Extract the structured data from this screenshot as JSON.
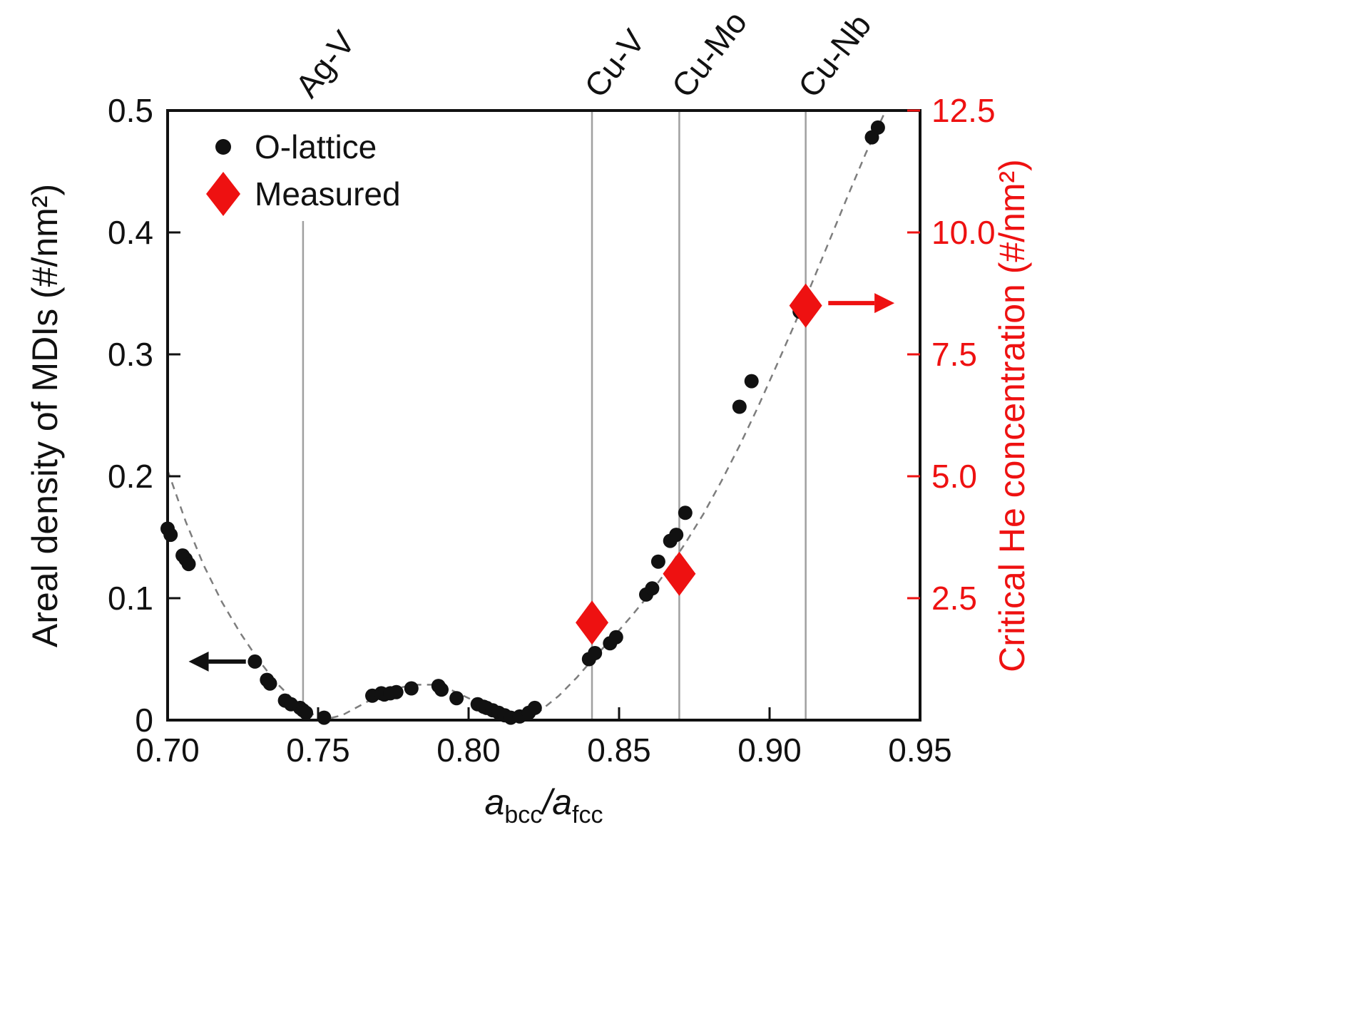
{
  "chart_data": {
    "type": "scatter",
    "title": "",
    "xlabel": "a_bcc/a_fcc",
    "xlabel_parts": [
      {
        "text": "a",
        "italic": true
      },
      {
        "text": "bcc",
        "sub": true
      },
      {
        "text": "/",
        "italic": true
      },
      {
        "text": "a",
        "italic": true
      },
      {
        "text": "fcc",
        "sub": true
      }
    ],
    "ylabel_left": "Areal density of MDIs (#/nm²)",
    "ylabel_right": "Critical He concentration (#/nm²)",
    "xlim": [
      0.7,
      0.95
    ],
    "ylim_left": [
      0,
      0.5
    ],
    "ylim_right": [
      0,
      12.5
    ],
    "x_ticks": [
      "0.70",
      "0.75",
      "0.80",
      "0.85",
      "0.90",
      "0.95"
    ],
    "y_ticks_left": [
      "0",
      "0.1",
      "0.2",
      "0.3",
      "0.4",
      "0.5"
    ],
    "y_ticks_right": [
      "2.5",
      "5.0",
      "7.5",
      "10.0",
      "12.5"
    ],
    "grid": false,
    "legend_position": "upper-left-inside",
    "colors": {
      "accent_red": "#ee1111",
      "dot_black": "#111111",
      "grid_gray": "#a0a0a0",
      "curve_gray": "#7d7d7d",
      "axis_black": "#111111"
    },
    "vlines": [
      {
        "label": "Ag-V",
        "x": 0.745,
        "top_gap": 155
      },
      {
        "label": "Cu-V",
        "x": 0.841,
        "top_gap": 0
      },
      {
        "label": "Cu-Mo",
        "x": 0.87,
        "top_gap": 0
      },
      {
        "label": "Cu-Nb",
        "x": 0.912,
        "top_gap": 0
      }
    ],
    "legend": [
      {
        "label": "O-lattice",
        "marker": "dot",
        "color": "#111111"
      },
      {
        "label": "Measured",
        "marker": "diamond",
        "color": "#ee1111"
      }
    ],
    "series": [
      {
        "name": "O-lattice",
        "marker": "dot",
        "color": "#111111",
        "axis": "left",
        "points": [
          [
            0.7,
            0.157
          ],
          [
            0.701,
            0.152
          ],
          [
            0.705,
            0.135
          ],
          [
            0.706,
            0.132
          ],
          [
            0.707,
            0.128
          ],
          [
            0.729,
            0.048
          ],
          [
            0.733,
            0.033
          ],
          [
            0.734,
            0.03
          ],
          [
            0.739,
            0.016
          ],
          [
            0.741,
            0.013
          ],
          [
            0.744,
            0.01
          ],
          [
            0.745,
            0.008
          ],
          [
            0.746,
            0.006
          ],
          [
            0.752,
            0.002
          ],
          [
            0.768,
            0.02
          ],
          [
            0.771,
            0.022
          ],
          [
            0.772,
            0.021
          ],
          [
            0.774,
            0.022
          ],
          [
            0.776,
            0.023
          ],
          [
            0.781,
            0.026
          ],
          [
            0.79,
            0.028
          ],
          [
            0.791,
            0.025
          ],
          [
            0.796,
            0.018
          ],
          [
            0.803,
            0.013
          ],
          [
            0.805,
            0.011
          ],
          [
            0.806,
            0.01
          ],
          [
            0.808,
            0.008
          ],
          [
            0.81,
            0.006
          ],
          [
            0.812,
            0.004
          ],
          [
            0.814,
            0.002
          ],
          [
            0.817,
            0.003
          ],
          [
            0.82,
            0.006
          ],
          [
            0.822,
            0.01
          ],
          [
            0.84,
            0.05
          ],
          [
            0.842,
            0.055
          ],
          [
            0.847,
            0.063
          ],
          [
            0.849,
            0.068
          ],
          [
            0.859,
            0.103
          ],
          [
            0.861,
            0.108
          ],
          [
            0.863,
            0.13
          ],
          [
            0.867,
            0.147
          ],
          [
            0.869,
            0.152
          ],
          [
            0.872,
            0.17
          ],
          [
            0.89,
            0.257
          ],
          [
            0.894,
            0.278
          ],
          [
            0.91,
            0.335
          ],
          [
            0.911,
            0.341
          ],
          [
            0.934,
            0.478
          ],
          [
            0.936,
            0.486
          ]
        ]
      },
      {
        "name": "Measured",
        "marker": "diamond",
        "color": "#ee1111",
        "axis": "right",
        "points": [
          [
            0.841,
            2.0
          ],
          [
            0.87,
            3.0
          ],
          [
            0.912,
            8.5
          ]
        ]
      }
    ],
    "fit_curve": {
      "style": "dashed",
      "color": "#7d7d7d",
      "points": [
        [
          0.7,
          0.205
        ],
        [
          0.706,
          0.163
        ],
        [
          0.712,
          0.127
        ],
        [
          0.718,
          0.097
        ],
        [
          0.724,
          0.072
        ],
        [
          0.73,
          0.05
        ],
        [
          0.736,
          0.031
        ],
        [
          0.742,
          0.016
        ],
        [
          0.748,
          0.005
        ],
        [
          0.753,
          0.001
        ],
        [
          0.758,
          0.004
        ],
        [
          0.764,
          0.012
        ],
        [
          0.77,
          0.02
        ],
        [
          0.776,
          0.026
        ],
        [
          0.782,
          0.029
        ],
        [
          0.788,
          0.029
        ],
        [
          0.794,
          0.025
        ],
        [
          0.8,
          0.018
        ],
        [
          0.806,
          0.01
        ],
        [
          0.812,
          0.004
        ],
        [
          0.818,
          0.002
        ],
        [
          0.824,
          0.008
        ],
        [
          0.83,
          0.02
        ],
        [
          0.836,
          0.035
        ],
        [
          0.842,
          0.052
        ],
        [
          0.848,
          0.068
        ],
        [
          0.854,
          0.085
        ],
        [
          0.86,
          0.103
        ],
        [
          0.866,
          0.123
        ],
        [
          0.872,
          0.145
        ],
        [
          0.878,
          0.169
        ],
        [
          0.884,
          0.196
        ],
        [
          0.89,
          0.225
        ],
        [
          0.896,
          0.256
        ],
        [
          0.902,
          0.289
        ],
        [
          0.908,
          0.323
        ],
        [
          0.914,
          0.358
        ],
        [
          0.92,
          0.394
        ],
        [
          0.926,
          0.43
        ],
        [
          0.932,
          0.465
        ],
        [
          0.938,
          0.497
        ]
      ]
    },
    "annotations": [
      {
        "name": "left-axis-arrow",
        "direction": "left",
        "color": "#111111",
        "x_tail": 0.726,
        "x_head": 0.707,
        "y": 0.048
      },
      {
        "name": "right-axis-arrow",
        "direction": "right",
        "color": "#ee1111",
        "x_tail": 0.9195,
        "x_head": 0.9415,
        "y": 0.342
      }
    ]
  }
}
